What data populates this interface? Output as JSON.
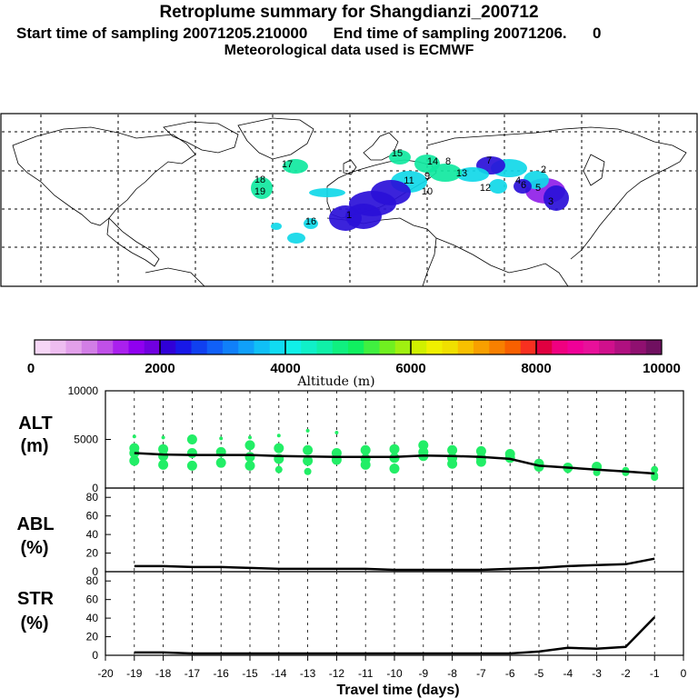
{
  "header": {
    "title": "Retroplume summary for Shangdianzi_200712",
    "line2": "Start time of sampling 20071205.210000      End time of sampling 20071206.      0",
    "line3": "Meteorological data used is ECMWF"
  },
  "colorbar": {
    "ticks": [
      "0",
      "2000",
      "4000",
      "6000",
      "8000",
      "10000"
    ],
    "label": "Altitude  (m)",
    "colors": [
      "#f6d6f6",
      "#eebdf0",
      "#e2a0ea",
      "#d27ee6",
      "#c050e8",
      "#aa20ee",
      "#9000f0",
      "#7000e0",
      "#3000d8",
      "#1818e8",
      "#1040f0",
      "#1060f8",
      "#1080fa",
      "#10a0fa",
      "#10c0f6",
      "#10dcf2",
      "#10f0e8",
      "#10f0c8",
      "#10f0a8",
      "#10f080",
      "#10f060",
      "#40f040",
      "#70f020",
      "#a0f010",
      "#d0f000",
      "#f0f000",
      "#f0e000",
      "#f8c000",
      "#f8a000",
      "#f88000",
      "#f86000",
      "#f83020",
      "#e00040",
      "#f00080",
      "#f00098",
      "#e8109a",
      "#d0108c",
      "#b01080",
      "#901070",
      "#701060"
    ]
  },
  "chart_data": [
    {
      "type": "scatter",
      "name": "ALT",
      "panel_label": "ALT",
      "unit_label": "(m)",
      "ylim": [
        0,
        10000
      ],
      "yticks": [
        "10000",
        "5000",
        "0"
      ],
      "median_line": {
        "x": [
          -19,
          -18,
          -17,
          -16,
          -15,
          -14,
          -13,
          -12,
          -11,
          -10,
          -9,
          -8,
          -7,
          -6,
          -5,
          -4,
          -3,
          -2,
          -1
        ],
        "y": [
          3600,
          3450,
          3400,
          3400,
          3400,
          3300,
          3250,
          3200,
          3200,
          3200,
          3350,
          3300,
          3200,
          3000,
          2300,
          2100,
          1900,
          1700,
          1500
        ]
      },
      "points": [
        [
          -19,
          4100
        ],
        [
          -19,
          3600
        ],
        [
          -19,
          2800
        ],
        [
          -19,
          5300
        ],
        [
          -18,
          4000
        ],
        [
          -18,
          3300
        ],
        [
          -18,
          2400
        ],
        [
          -18,
          5200
        ],
        [
          -17,
          3600
        ],
        [
          -17,
          2300
        ],
        [
          -17,
          5000
        ],
        [
          -16,
          3700
        ],
        [
          -16,
          2600
        ],
        [
          -16,
          5100
        ],
        [
          -15,
          4400
        ],
        [
          -15,
          3200
        ],
        [
          -15,
          2300
        ],
        [
          -15,
          5200
        ],
        [
          -14,
          4100
        ],
        [
          -14,
          3000
        ],
        [
          -14,
          1900
        ],
        [
          -14,
          5400
        ],
        [
          -13,
          3900
        ],
        [
          -13,
          2800
        ],
        [
          -13,
          1700
        ],
        [
          -13,
          5900
        ],
        [
          -12,
          3600
        ],
        [
          -12,
          2900
        ],
        [
          -12,
          5700
        ],
        [
          -11,
          3900
        ],
        [
          -11,
          3000
        ],
        [
          -11,
          2400
        ],
        [
          -10,
          4000
        ],
        [
          -10,
          3100
        ],
        [
          -10,
          2000
        ],
        [
          -9,
          4400
        ],
        [
          -9,
          3700
        ],
        [
          -9,
          3300
        ],
        [
          -8,
          3900
        ],
        [
          -8,
          3100
        ],
        [
          -8,
          2500
        ],
        [
          -7,
          3800
        ],
        [
          -7,
          3100
        ],
        [
          -7,
          2700
        ],
        [
          -6,
          3500
        ],
        [
          -6,
          3100
        ],
        [
          -5,
          2500
        ],
        [
          -5,
          2200
        ],
        [
          -4,
          2100
        ],
        [
          -4,
          1900
        ],
        [
          -3,
          2200
        ],
        [
          -3,
          1600
        ],
        [
          -2,
          1800
        ],
        [
          -2,
          1600
        ],
        [
          -1,
          1900
        ],
        [
          -1,
          1300
        ],
        [
          -1,
          1100
        ]
      ]
    },
    {
      "type": "line",
      "name": "ABL",
      "panel_label": "ABL",
      "unit_label": "(%)",
      "ylim": [
        0,
        90
      ],
      "yticks": [
        "80",
        "60",
        "40",
        "20",
        "0"
      ],
      "x": [
        -19,
        -18,
        -17,
        -16,
        -15,
        -14,
        -13,
        -12,
        -11,
        -10,
        -9,
        -8,
        -7,
        -6,
        -5,
        -4,
        -3,
        -2,
        -1
      ],
      "y": [
        6,
        6,
        5,
        5,
        4,
        3,
        3,
        3,
        3,
        2,
        2,
        2,
        2,
        3,
        4,
        6,
        7,
        8,
        14
      ]
    },
    {
      "type": "line",
      "name": "STR",
      "panel_label": "STR",
      "unit_label": "(%)",
      "ylim": [
        0,
        90
      ],
      "yticks": [
        "80",
        "60",
        "40",
        "20",
        "0"
      ],
      "x": [
        -19,
        -18,
        -17,
        -16,
        -15,
        -14,
        -13,
        -12,
        -11,
        -10,
        -9,
        -8,
        -7,
        -6,
        -5,
        -4,
        -3,
        -2,
        -1
      ],
      "y": [
        3,
        3,
        2,
        2,
        2,
        2,
        2,
        2,
        2,
        2,
        2,
        2,
        2,
        2,
        4,
        8,
        7,
        9,
        41
      ]
    }
  ],
  "x_axis": {
    "label": "Travel time (days)",
    "ticks": [
      "-20",
      "-19",
      "-18",
      "-17",
      "-16",
      "-15",
      "-14",
      "-13",
      "-12",
      "-11",
      "-10",
      "-9",
      "-8",
      "-7",
      "-6",
      "-5",
      "-4",
      "-3",
      "-2",
      "-1",
      "0"
    ]
  },
  "map": {
    "plume_labels": [
      "15",
      "14",
      "8",
      "7",
      "13",
      "12",
      "18",
      "19",
      "16",
      "10",
      "11",
      "9",
      "6",
      "5",
      "4",
      "3",
      "2",
      "1",
      "17"
    ],
    "plume_color_low": "#2a10d8",
    "plume_color_mid": "#10d8e8",
    "plume_color_top": "#10e8a0",
    "plume_color_violet": "#9020e8"
  },
  "colors": {
    "points": "#22ee66",
    "line": "#000000"
  }
}
